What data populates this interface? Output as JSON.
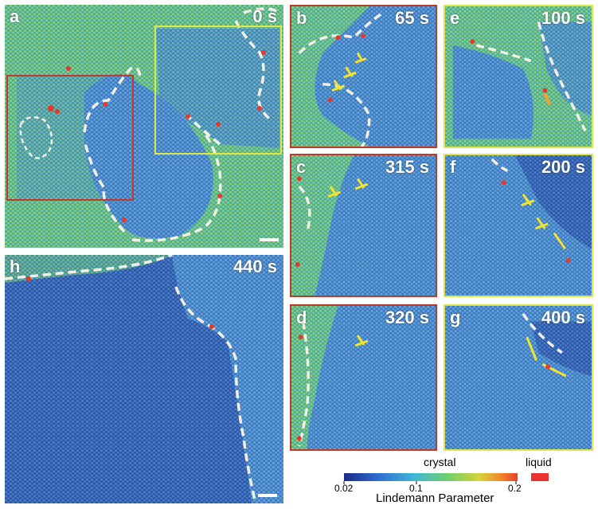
{
  "panels": [
    {
      "id": "a",
      "label": "a",
      "time": "0 s",
      "scale_bar": true
    },
    {
      "id": "b",
      "label": "b",
      "time": "65 s",
      "frame": "red"
    },
    {
      "id": "e",
      "label": "e",
      "time": "100 s",
      "frame": "yellow"
    },
    {
      "id": "c",
      "label": "c",
      "time": "315 s",
      "frame": "red"
    },
    {
      "id": "f",
      "label": "f",
      "time": "200 s",
      "frame": "yellow"
    },
    {
      "id": "h",
      "label": "h",
      "time": "440 s",
      "scale_bar": true
    },
    {
      "id": "d",
      "label": "d",
      "time": "320 s",
      "frame": "red"
    },
    {
      "id": "g",
      "label": "g",
      "time": "400 s",
      "frame": "yellow"
    }
  ],
  "colorbar": {
    "crystal_label": "crystal",
    "liquid_label": "liquid",
    "title": "Lindemann Parameter",
    "ticks": [
      "0.02",
      "0.1",
      "0.2"
    ],
    "colors": [
      "#1a2a8c",
      "#2f6fd0",
      "#3fb6d8",
      "#6fd06a",
      "#d7d33a",
      "#f08a2a",
      "#e8402a"
    ],
    "liquid_color": "#e8332e"
  },
  "colors": {
    "inset_red": "#c0392b",
    "inset_yellow": "#dfe64a",
    "boundary": "#f2efe6",
    "dislocation": "#f5e52a"
  }
}
